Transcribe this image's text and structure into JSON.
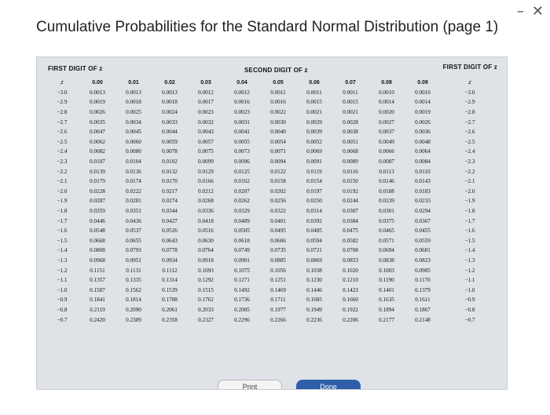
{
  "window": {
    "minimize_icon": "–",
    "close_icon": "✕"
  },
  "title": "Cumulative Probabilities for the Standard Normal Distribution (page 1)",
  "table": {
    "first_digit_left": "FIRST DIGIT OF z",
    "second_digit": "SECOND DIGIT OF z",
    "first_digit_right": "FIRST DIGIT OF z",
    "z_label": "z",
    "columns": [
      "0.00",
      "0.01",
      "0.02",
      "0.03",
      "0.04",
      "0.05",
      "0.06",
      "0.07",
      "0.08",
      "0.09"
    ],
    "rows": [
      {
        "z": "−3.0",
        "v": [
          "0.0013",
          "0.0013",
          "0.0013",
          "0.0012",
          "0.0012",
          "0.0011",
          "0.0011",
          "0.0011",
          "0.0010",
          "0.0010"
        ]
      },
      {
        "z": "−2.9",
        "v": [
          "0.0019",
          "0.0018",
          "0.0018",
          "0.0017",
          "0.0016",
          "0.0016",
          "0.0015",
          "0.0015",
          "0.0014",
          "0.0014"
        ]
      },
      {
        "z": "−2.8",
        "v": [
          "0.0026",
          "0.0025",
          "0.0024",
          "0.0023",
          "0.0023",
          "0.0022",
          "0.0021",
          "0.0021",
          "0.0020",
          "0.0019"
        ]
      },
      {
        "z": "−2.7",
        "v": [
          "0.0035",
          "0.0034",
          "0.0033",
          "0.0032",
          "0.0031",
          "0.0030",
          "0.0029",
          "0.0028",
          "0.0027",
          "0.0026"
        ]
      },
      {
        "z": "−2.6",
        "v": [
          "0.0047",
          "0.0045",
          "0.0044",
          "0.0043",
          "0.0041",
          "0.0040",
          "0.0039",
          "0.0038",
          "0.0037",
          "0.0036"
        ]
      },
      {
        "z": "−2.5",
        "v": [
          "0.0062",
          "0.0060",
          "0.0059",
          "0.0057",
          "0.0055",
          "0.0054",
          "0.0052",
          "0.0051",
          "0.0049",
          "0.0048"
        ]
      },
      {
        "z": "−2.4",
        "v": [
          "0.0082",
          "0.0080",
          "0.0078",
          "0.0075",
          "0.0073",
          "0.0071",
          "0.0069",
          "0.0068",
          "0.0066",
          "0.0064"
        ]
      },
      {
        "z": "−2.3",
        "v": [
          "0.0107",
          "0.0104",
          "0.0102",
          "0.0099",
          "0.0096",
          "0.0094",
          "0.0091",
          "0.0089",
          "0.0087",
          "0.0084"
        ]
      },
      {
        "z": "−2.2",
        "v": [
          "0.0139",
          "0.0136",
          "0.0132",
          "0.0129",
          "0.0125",
          "0.0122",
          "0.0119",
          "0.0116",
          "0.0113",
          "0.0110"
        ]
      },
      {
        "z": "−2.1",
        "v": [
          "0.0179",
          "0.0174",
          "0.0170",
          "0.0166",
          "0.0162",
          "0.0158",
          "0.0154",
          "0.0150",
          "0.0146",
          "0.0143"
        ]
      },
      {
        "z": "−2.0",
        "v": [
          "0.0228",
          "0.0222",
          "0.0217",
          "0.0212",
          "0.0207",
          "0.0202",
          "0.0197",
          "0.0192",
          "0.0188",
          "0.0183"
        ]
      },
      {
        "z": "−1.9",
        "v": [
          "0.0287",
          "0.0281",
          "0.0274",
          "0.0268",
          "0.0262",
          "0.0256",
          "0.0250",
          "0.0244",
          "0.0239",
          "0.0233"
        ]
      },
      {
        "z": "−1.8",
        "v": [
          "0.0359",
          "0.0351",
          "0.0344",
          "0.0336",
          "0.0329",
          "0.0322",
          "0.0314",
          "0.0307",
          "0.0301",
          "0.0294"
        ]
      },
      {
        "z": "−1.7",
        "v": [
          "0.0446",
          "0.0436",
          "0.0427",
          "0.0418",
          "0.0409",
          "0.0401",
          "0.0392",
          "0.0384",
          "0.0375",
          "0.0367"
        ]
      },
      {
        "z": "−1.6",
        "v": [
          "0.0548",
          "0.0537",
          "0.0526",
          "0.0516",
          "0.0505",
          "0.0495",
          "0.0485",
          "0.0475",
          "0.0465",
          "0.0455"
        ]
      },
      {
        "z": "−1.5",
        "v": [
          "0.0668",
          "0.0655",
          "0.0643",
          "0.0630",
          "0.0618",
          "0.0606",
          "0.0594",
          "0.0582",
          "0.0571",
          "0.0559"
        ]
      },
      {
        "z": "−1.4",
        "v": [
          "0.0808",
          "0.0793",
          "0.0778",
          "0.0764",
          "0.0749",
          "0.0735",
          "0.0721",
          "0.0708",
          "0.0694",
          "0.0681"
        ]
      },
      {
        "z": "−1.3",
        "v": [
          "0.0968",
          "0.0951",
          "0.0934",
          "0.0918",
          "0.0901",
          "0.0885",
          "0.0869",
          "0.0853",
          "0.0838",
          "0.0823"
        ]
      },
      {
        "z": "−1.2",
        "v": [
          "0.1151",
          "0.1131",
          "0.1112",
          "0.1093",
          "0.1075",
          "0.1056",
          "0.1038",
          "0.1020",
          "0.1003",
          "0.0985"
        ]
      },
      {
        "z": "−1.1",
        "v": [
          "0.1357",
          "0.1335",
          "0.1314",
          "0.1292",
          "0.1271",
          "0.1251",
          "0.1230",
          "0.1210",
          "0.1190",
          "0.1170"
        ]
      },
      {
        "z": "−1.0",
        "v": [
          "0.1587",
          "0.1562",
          "0.1539",
          "0.1515",
          "0.1492",
          "0.1469",
          "0.1446",
          "0.1423",
          "0.1401",
          "0.1379"
        ]
      },
      {
        "z": "−0.9",
        "v": [
          "0.1841",
          "0.1814",
          "0.1788",
          "0.1762",
          "0.1736",
          "0.1711",
          "0.1685",
          "0.1660",
          "0.1635",
          "0.1611"
        ]
      },
      {
        "z": "−0.8",
        "v": [
          "0.2119",
          "0.2090",
          "0.2061",
          "0.2033",
          "0.2005",
          "0.1977",
          "0.1949",
          "0.1922",
          "0.1894",
          "0.1867"
        ]
      },
      {
        "z": "−0.7",
        "v": [
          "0.2420",
          "0.2389",
          "0.2358",
          "0.2327",
          "0.2296",
          "0.2266",
          "0.2236",
          "0.2206",
          "0.2177",
          "0.2148"
        ]
      }
    ]
  },
  "buttons": {
    "print": "Print",
    "done": "Done"
  }
}
